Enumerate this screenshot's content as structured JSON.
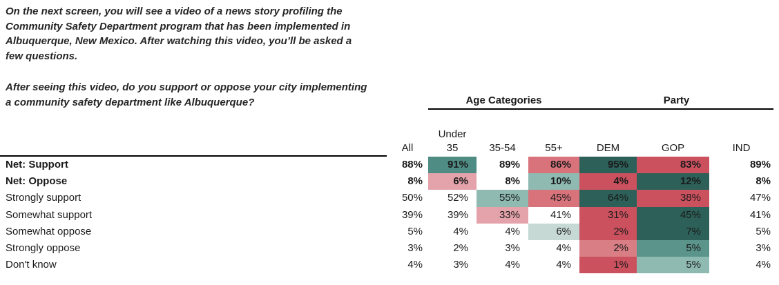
{
  "question": {
    "p1_lines": [
      "On the next screen, you will see a video of a news story profiling the",
      "Community Safety Department program that has been implemented in",
      "Albuquerque, New Mexico. After watching this video, you’ll be asked a",
      "few questions."
    ],
    "p2_lines": [
      "After seeing this video, do you support or oppose your city implementing",
      "a community safety department like Albuquerque?"
    ]
  },
  "colors": {
    "dark_teal": "#2c6058",
    "mid_teal": "#4f8c83",
    "teal": "#5b948b",
    "light_teal": "#8ebab2",
    "pale_teal": "#c6d9d5",
    "red": "#cc515e",
    "soft_red": "#d97e85",
    "pink": "#d8737c",
    "light_pink": "#e4a3ab"
  },
  "chart_data": {
    "type": "table",
    "subtype": "heatmap-crosstab",
    "title": "After seeing this video, do you support or oppose your city implementing a community safety department like Albuquerque?",
    "column_groups": [
      {
        "label": "Age Categories",
        "columns": [
          "Under 35",
          "35-54",
          "55+"
        ]
      },
      {
        "label": "Party",
        "columns": [
          "DEM",
          "GOP",
          "IND"
        ]
      }
    ],
    "columns": [
      "All",
      "Under\n35",
      "35-54",
      "55+",
      "DEM",
      "GOP",
      "IND"
    ],
    "rows": [
      {
        "label": "Net: Support",
        "bold": true,
        "values": [
          "88%",
          "91%",
          "89%",
          "86%",
          "95%",
          "83%",
          "89%"
        ],
        "colors": [
          "",
          "mid_teal",
          "",
          "pink",
          "dark_teal",
          "red",
          ""
        ]
      },
      {
        "label": "Net: Oppose",
        "bold": true,
        "values": [
          "8%",
          "6%",
          "8%",
          "10%",
          "4%",
          "12%",
          "8%"
        ],
        "colors": [
          "",
          "light_pink",
          "",
          "light_teal",
          "red",
          "dark_teal",
          ""
        ]
      },
      {
        "label": "Strongly support",
        "bold": false,
        "values": [
          "50%",
          "52%",
          "55%",
          "45%",
          "64%",
          "38%",
          "47%"
        ],
        "colors": [
          "",
          "",
          "light_teal",
          "pink",
          "dark_teal",
          "red",
          ""
        ]
      },
      {
        "label": "Somewhat support",
        "bold": false,
        "values": [
          "39%",
          "39%",
          "33%",
          "41%",
          "31%",
          "45%",
          "41%"
        ],
        "colors": [
          "",
          "",
          "light_pink",
          "",
          "red",
          "dark_teal",
          ""
        ]
      },
      {
        "label": "Somewhat oppose",
        "bold": false,
        "values": [
          "5%",
          "4%",
          "4%",
          "6%",
          "2%",
          "7%",
          "5%"
        ],
        "colors": [
          "",
          "",
          "",
          "pale_teal",
          "red",
          "dark_teal",
          ""
        ]
      },
      {
        "label": "Strongly oppose",
        "bold": false,
        "values": [
          "3%",
          "2%",
          "3%",
          "4%",
          "2%",
          "5%",
          "3%"
        ],
        "colors": [
          "",
          "",
          "",
          "",
          "soft_red",
          "teal",
          ""
        ]
      },
      {
        "label": "Don't know",
        "bold": false,
        "values": [
          "4%",
          "3%",
          "4%",
          "4%",
          "1%",
          "5%",
          "4%"
        ],
        "colors": [
          "",
          "",
          "",
          "",
          "red",
          "light_teal",
          ""
        ]
      }
    ]
  }
}
